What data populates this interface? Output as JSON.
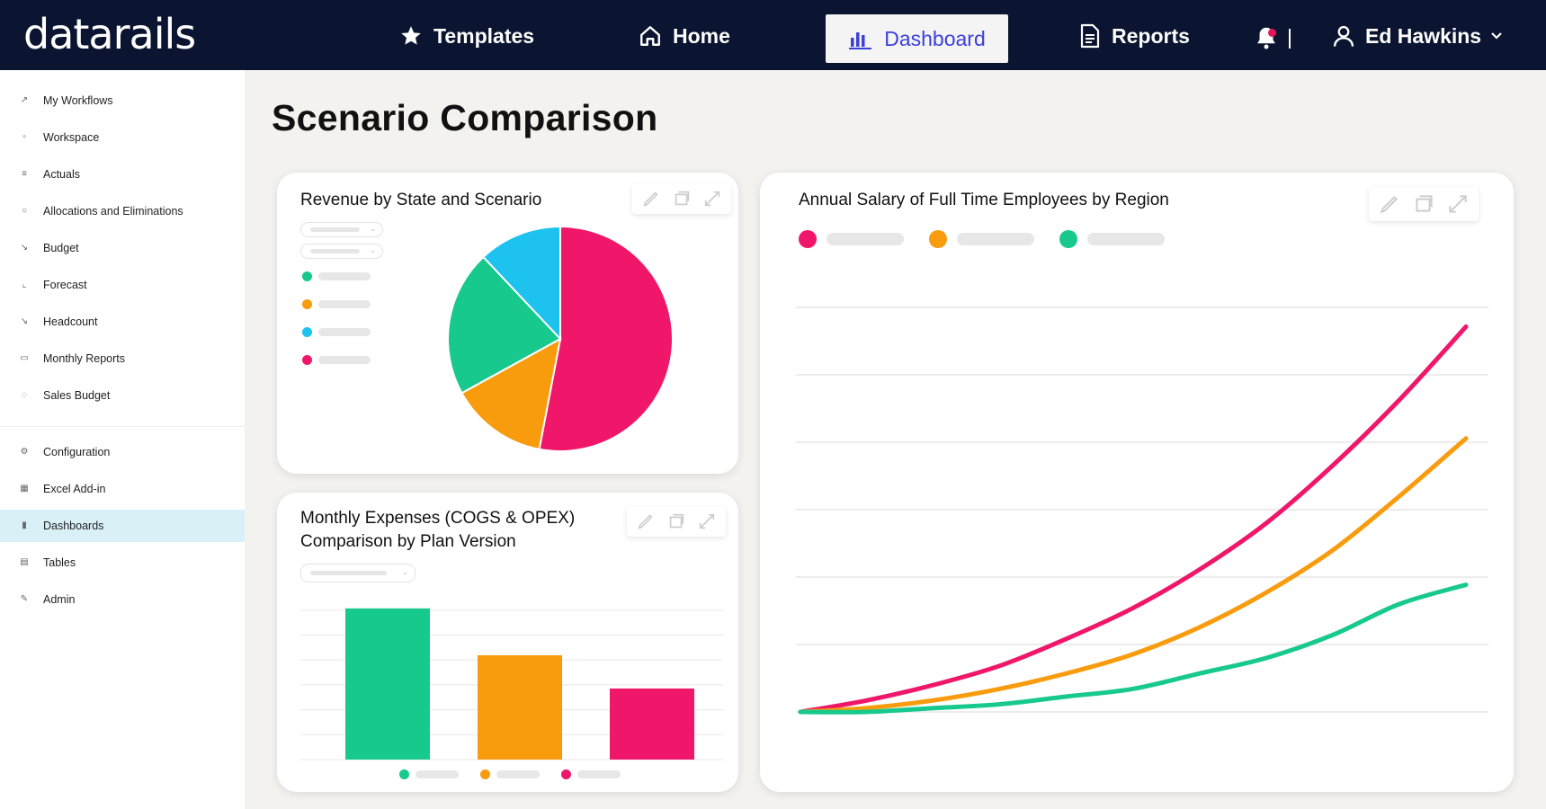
{
  "app": {
    "logo": "datarails"
  },
  "nav": {
    "templates": "Templates",
    "home": "Home",
    "dashboard": "Dashboard",
    "reports": "Reports",
    "user_name": "Ed Hawkins"
  },
  "sidebar": {
    "items": [
      {
        "label": "My Workflows",
        "icon": "workflow-icon"
      },
      {
        "label": "Workspace",
        "icon": "workspace-icon"
      },
      {
        "label": "Actuals",
        "icon": "actuals-icon"
      },
      {
        "label": "Allocations and Eliminations",
        "icon": "allocations-icon"
      },
      {
        "label": "Budget",
        "icon": "budget-icon"
      },
      {
        "label": "Forecast",
        "icon": "forecast-icon"
      },
      {
        "label": "Headcount",
        "icon": "headcount-icon"
      },
      {
        "label": "Monthly Reports",
        "icon": "reports-icon"
      },
      {
        "label": "Sales Budget",
        "icon": "sales-icon"
      },
      {
        "label": "Configuration",
        "icon": "configuration-icon"
      },
      {
        "label": "Excel Add-in",
        "icon": "excel-icon"
      },
      {
        "label": "Dashboards",
        "icon": "dashboards-icon"
      },
      {
        "label": "Tables",
        "icon": "tables-icon"
      },
      {
        "label": "Admin",
        "icon": "admin-icon"
      }
    ],
    "active": "Dashboards"
  },
  "page": {
    "title": "Scenario Comparison"
  },
  "colors": {
    "navy": "#0b1430",
    "accent": "#3d40d9",
    "pink": "#f0176a",
    "orange": "#f89c0e",
    "green": "#17c98c",
    "blue": "#1ec2ef",
    "active_item": "#d9f0f7"
  },
  "cards": {
    "revenue": {
      "title": "Revenue by State and Scenario"
    },
    "expenses": {
      "title_line1": "Monthly Expenses (COGS & OPEX)",
      "title_line2": "Comparison by Plan Version"
    },
    "salary": {
      "title": "Annual Salary of Full Time Employees by Region"
    }
  },
  "chart_data": [
    {
      "type": "pie",
      "title": "Revenue by State and Scenario",
      "slices": [
        {
          "color": "#f0176a",
          "value": 53
        },
        {
          "color": "#f89c0e",
          "value": 14
        },
        {
          "color": "#17c98c",
          "value": 21
        },
        {
          "color": "#1ec2ef",
          "value": 12
        }
      ]
    },
    {
      "type": "bar",
      "title": "Monthly Expenses (COGS & OPEX) Comparison by Plan Version",
      "series": [
        {
          "color": "#17c98c",
          "value": 100
        },
        {
          "color": "#f89c0e",
          "value": 69
        },
        {
          "color": "#f0176a",
          "value": 47
        }
      ],
      "ylim": [
        0,
        110
      ],
      "grid": true
    },
    {
      "type": "line",
      "title": "Annual Salary of Full Time Employees by Region",
      "x": [
        0,
        1,
        2,
        3,
        4,
        5,
        6,
        7,
        8,
        9,
        10
      ],
      "series": [
        {
          "color": "#f0176a",
          "values": [
            0,
            3,
            7,
            12,
            19,
            27,
            37,
            49,
            64,
            81,
            100
          ]
        },
        {
          "color": "#f89c0e",
          "values": [
            0,
            1,
            3,
            6,
            10,
            15,
            22,
            31,
            42,
            56,
            71
          ]
        },
        {
          "color": "#17c98c",
          "values": [
            0,
            0,
            1,
            2,
            4,
            6,
            10,
            14,
            20,
            28,
            33
          ]
        }
      ],
      "ylim": [
        0,
        105
      ],
      "grid": true
    }
  ]
}
